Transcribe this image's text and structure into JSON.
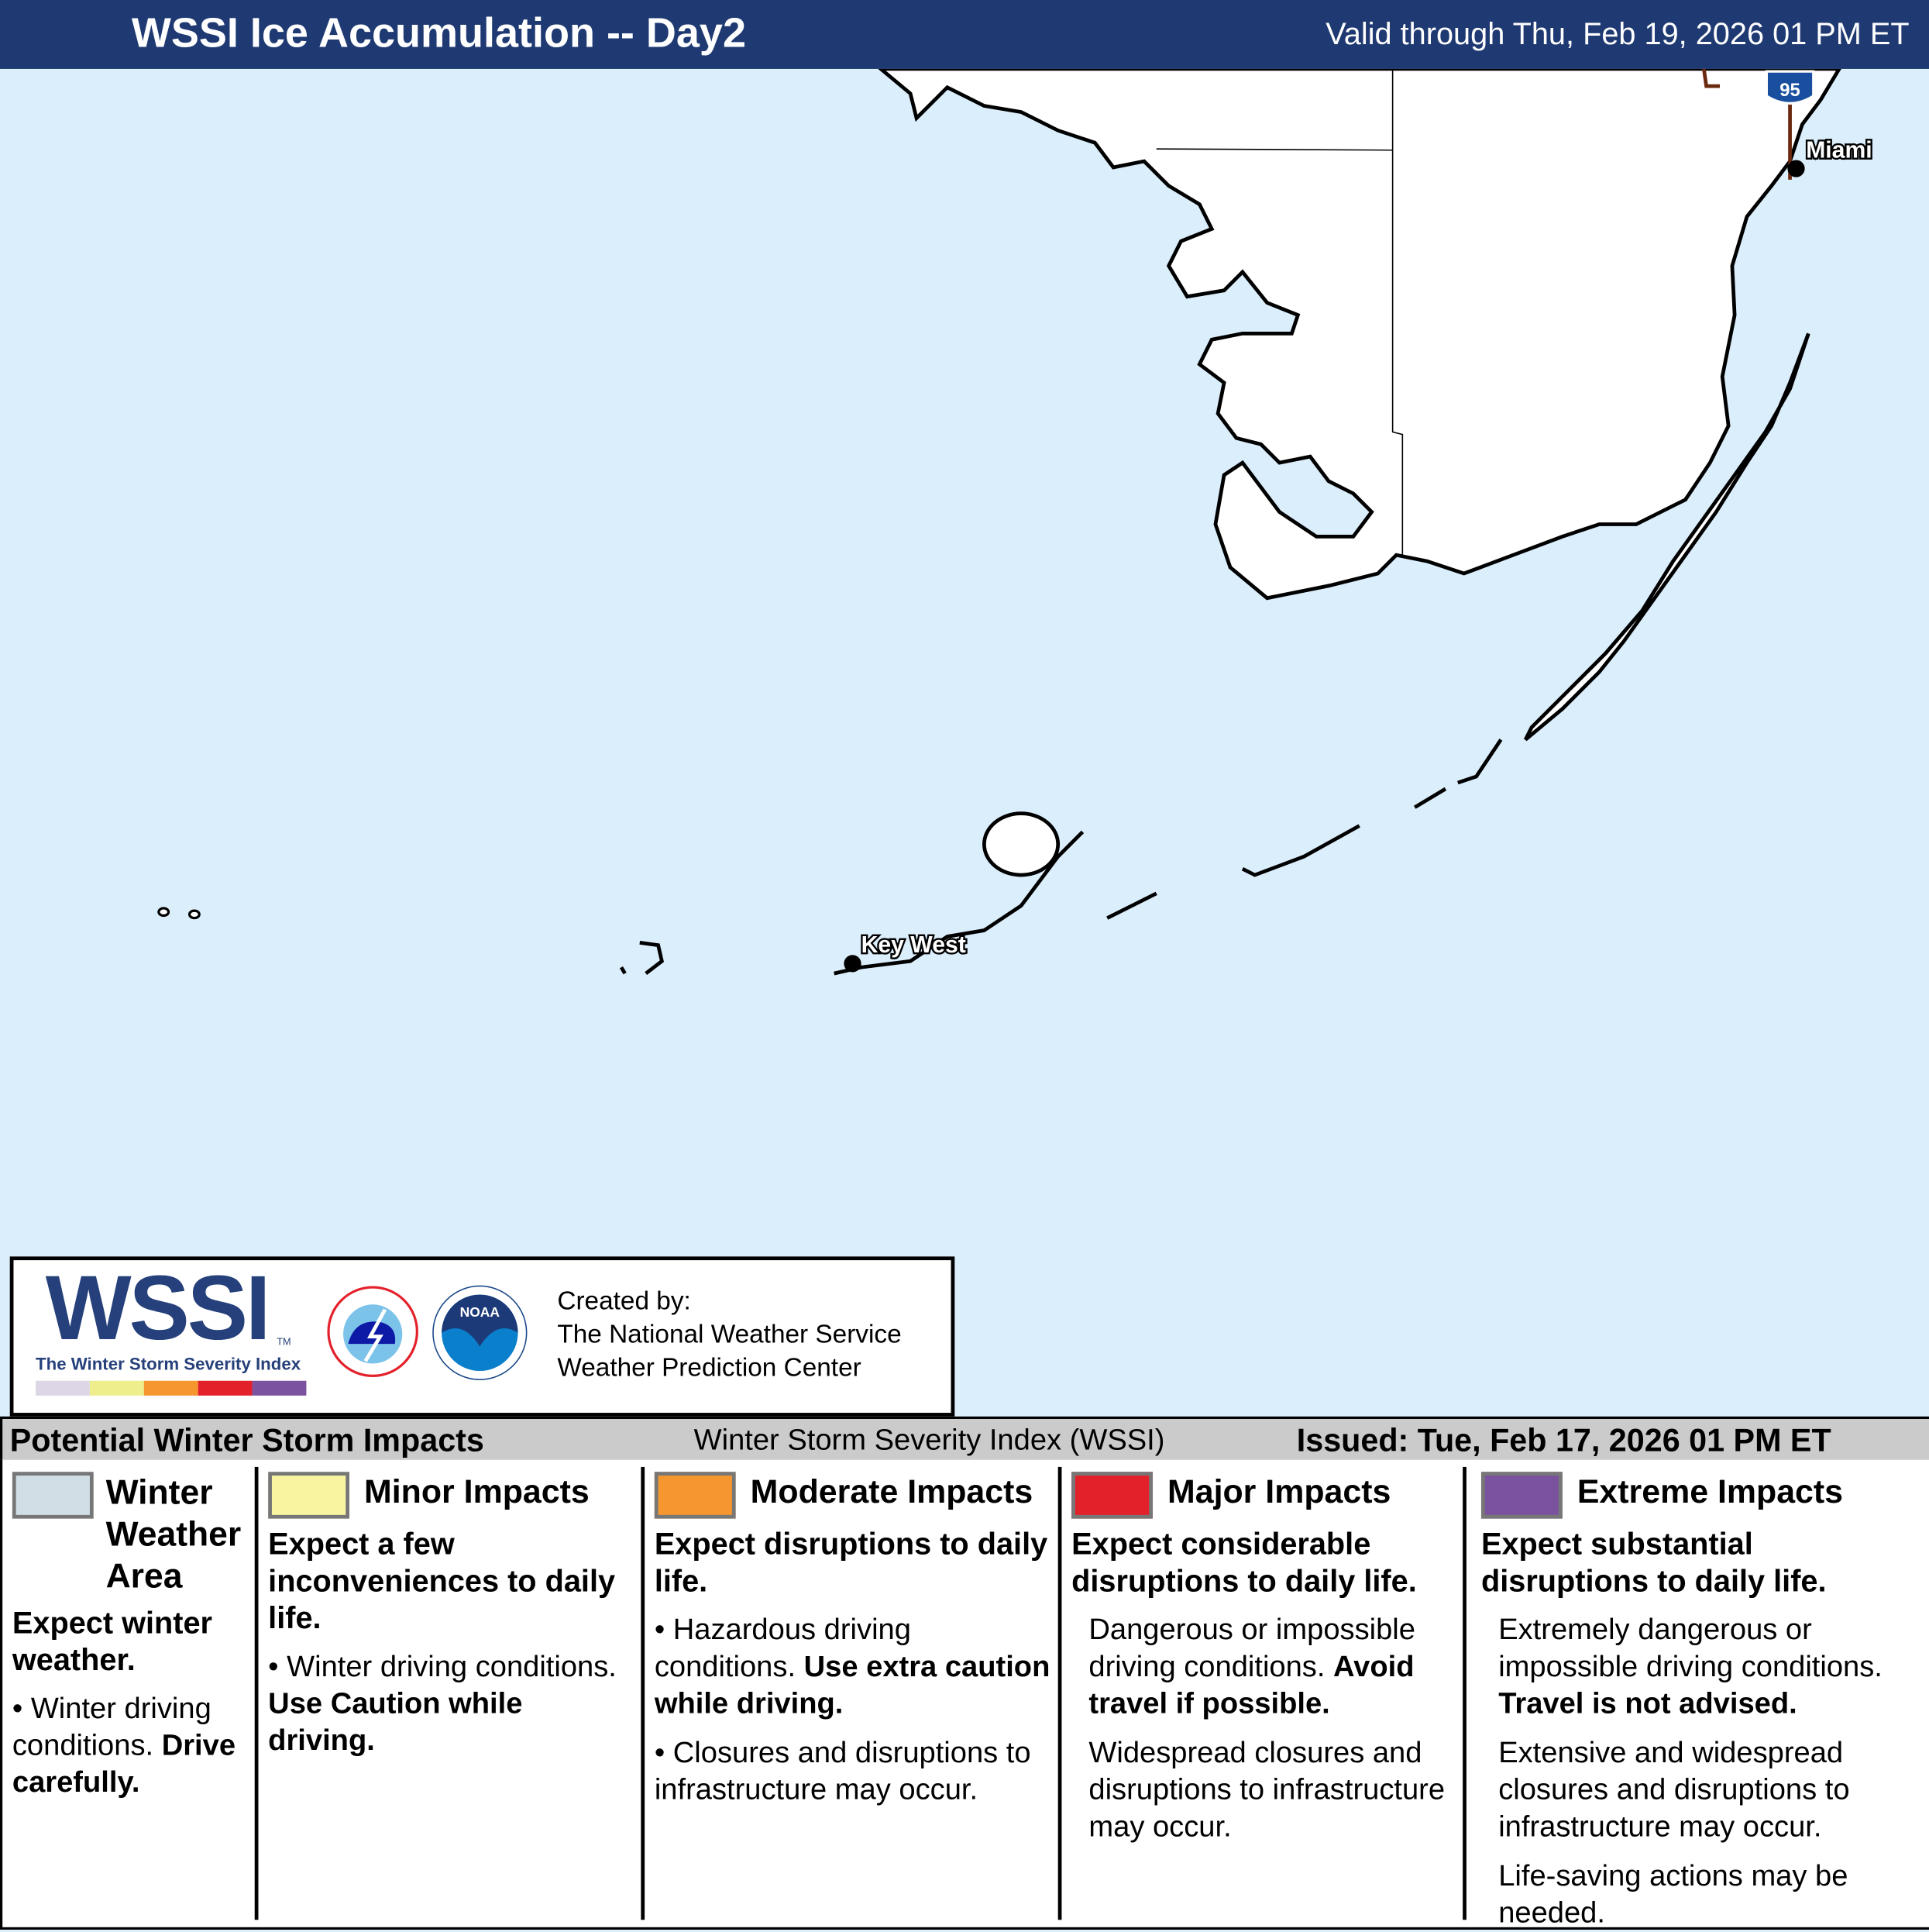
{
  "header": {
    "title": "WSSI Ice Accumulation -- Day2",
    "valid": "Valid through Thu, Feb 19, 2026 01 PM ET"
  },
  "map": {
    "cities": [
      "Miami",
      "Key West"
    ],
    "highway_shield": "95",
    "colors": {
      "water": "#dbeefc",
      "land": "#ffffff",
      "header": "#1f3a72"
    }
  },
  "logo": {
    "wssi": "WSSI",
    "tm": "TM",
    "subtitle": "The Winter Storm Severity Index",
    "nws_text": "NATIONAL WEATHER SERVICE",
    "noaa": "NOAA",
    "created_by": "Created by:",
    "org1": "The National Weather Service",
    "org2": "Weather Prediction Center"
  },
  "bar": {
    "left": "Potential Winter Storm Impacts",
    "middle": "Winter Storm Severity Index (WSSI)",
    "right": "Issued: Tue, Feb 17, 2026 01 PM ET"
  },
  "legend": [
    {
      "color": "#d1dee6",
      "title": "Winter Weather Area",
      "summary": "Expect winter weather.",
      "detail": "Winter driving conditions.",
      "detail_bold": "Drive carefully."
    },
    {
      "color": "#f8f4a0",
      "title": "Minor Impacts",
      "summary": "Expect a few inconveniences to daily life.",
      "detail": "Winter driving conditions.",
      "detail_bold": "Use Caution while driving."
    },
    {
      "color": "#f6962f",
      "title": "Moderate Impacts",
      "summary": "Expect disruptions to daily life.",
      "detail": "Hazardous driving conditions.",
      "detail_bold": "Use extra caution while driving.",
      "detail2": "Closures and disruptions to infrastructure may occur."
    },
    {
      "color": "#e3212b",
      "title": "Major Impacts",
      "summary": "Expect considerable disruptions to daily life.",
      "detail": "Dangerous or impossible driving conditions.",
      "detail_bold": "Avoid travel if possible.",
      "detail2": "Widespread closures and disruptions to infrastructure may occur."
    },
    {
      "color": "#7a529e",
      "title": "Extreme Impacts",
      "summary": "Expect substantial disruptions to daily life.",
      "detail": "Extremely dangerous or impossible driving conditions.",
      "detail_bold": "Travel is not advised.",
      "detail2": "Extensive and widespread closures and disruptions to infrastructure may occur.",
      "detail3": "Life-saving actions may be needed."
    }
  ]
}
